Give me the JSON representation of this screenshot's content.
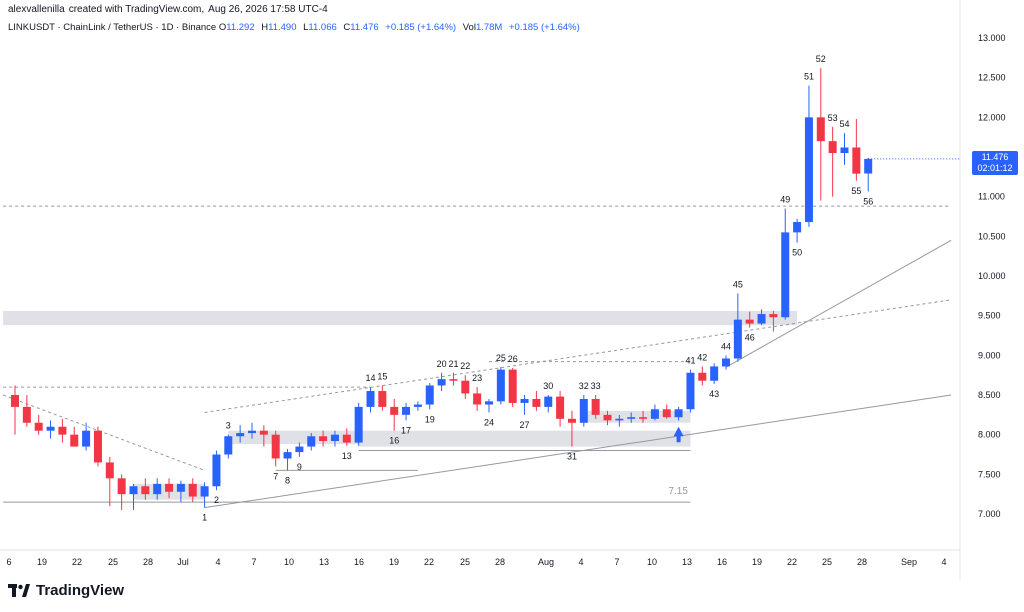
{
  "header": {
    "author": "alexvallenilla",
    "created_with": "created with TradingView.com,",
    "datetime": "Aug 26, 2026 17:58 UTC-4"
  },
  "symbol": {
    "name": "LINKUSDT · ChainLink / TetherUS · 1D · Binance",
    "open_label": "O",
    "open": "11.292",
    "high_label": "H",
    "high": "11.490",
    "low_label": "L",
    "low": "11.066",
    "close_label": "C",
    "close": "11.476",
    "change": "+0.185 (+1.64%)",
    "vol_label": "Vol",
    "vol": "1.78M",
    "vol_change": "+0.185 (+1.64%)"
  },
  "last_price": {
    "price": "11.476",
    "countdown": "02:01:12"
  },
  "footer": {
    "logo_text": "TradingView"
  },
  "colors": {
    "up": "#2962ff",
    "down": "#f23645",
    "zone": "#d1d4dc",
    "line": "#9598a1",
    "axis_text": "#131722",
    "background": "#ffffff"
  },
  "chart_data": {
    "type": "candlestick",
    "ylim": [
      6.8,
      13.15
    ],
    "y_ticks": [
      "13.000",
      "12.500",
      "12.000",
      "11.500",
      "11.000",
      "10.500",
      "10.000",
      "9.500",
      "9.000",
      "8.500",
      "8.000",
      "7.500",
      "7.000"
    ],
    "x_ticks": [
      "6",
      "19",
      "22",
      "25",
      "28",
      "Jul",
      "4",
      "7",
      "10",
      "13",
      "16",
      "19",
      "22",
      "25",
      "28",
      "Aug",
      "4",
      "7",
      "10",
      "13",
      "16",
      "19",
      "22",
      "25",
      "28",
      "Sep",
      "4"
    ],
    "candles": [
      {
        "o": 8.5,
        "h": 8.62,
        "l": 8.0,
        "c": 8.35
      },
      {
        "o": 8.35,
        "h": 8.5,
        "l": 8.1,
        "c": 8.15
      },
      {
        "o": 8.15,
        "h": 8.25,
        "l": 8.0,
        "c": 8.05
      },
      {
        "o": 8.05,
        "h": 8.18,
        "l": 7.95,
        "c": 8.1
      },
      {
        "o": 8.1,
        "h": 8.2,
        "l": 7.9,
        "c": 8.0
      },
      {
        "o": 8.0,
        "h": 8.1,
        "l": 7.85,
        "c": 7.85
      },
      {
        "o": 7.85,
        "h": 8.15,
        "l": 7.8,
        "c": 8.05
      },
      {
        "o": 8.05,
        "h": 8.1,
        "l": 7.6,
        "c": 7.65
      },
      {
        "o": 7.65,
        "h": 7.72,
        "l": 7.1,
        "c": 7.45
      },
      {
        "o": 7.45,
        "h": 7.5,
        "l": 7.05,
        "c": 7.25
      },
      {
        "o": 7.25,
        "h": 7.38,
        "l": 7.05,
        "c": 7.35
      },
      {
        "o": 7.35,
        "h": 7.45,
        "l": 7.18,
        "c": 7.25
      },
      {
        "o": 7.25,
        "h": 7.45,
        "l": 7.18,
        "c": 7.38
      },
      {
        "o": 7.38,
        "h": 7.45,
        "l": 7.2,
        "c": 7.28
      },
      {
        "o": 7.28,
        "h": 7.42,
        "l": 7.15,
        "c": 7.38
      },
      {
        "o": 7.38,
        "h": 7.45,
        "l": 7.15,
        "c": 7.22
      },
      {
        "o": 7.22,
        "h": 7.4,
        "l": 7.08,
        "c": 7.35
      },
      {
        "o": 7.35,
        "h": 7.8,
        "l": 7.3,
        "c": 7.75
      },
      {
        "o": 7.75,
        "h": 8.0,
        "l": 7.7,
        "c": 7.98
      },
      {
        "o": 7.98,
        "h": 8.12,
        "l": 7.9,
        "c": 8.02
      },
      {
        "o": 8.02,
        "h": 8.15,
        "l": 7.95,
        "c": 8.05
      },
      {
        "o": 8.05,
        "h": 8.12,
        "l": 7.85,
        "c": 8.0
      },
      {
        "o": 8.0,
        "h": 8.05,
        "l": 7.6,
        "c": 7.7
      },
      {
        "o": 7.7,
        "h": 7.82,
        "l": 7.55,
        "c": 7.78
      },
      {
        "o": 7.78,
        "h": 7.9,
        "l": 7.72,
        "c": 7.85
      },
      {
        "o": 7.85,
        "h": 8.02,
        "l": 7.8,
        "c": 7.98
      },
      {
        "o": 7.98,
        "h": 8.05,
        "l": 7.85,
        "c": 7.92
      },
      {
        "o": 7.92,
        "h": 8.05,
        "l": 7.85,
        "c": 8.0
      },
      {
        "o": 8.0,
        "h": 8.08,
        "l": 7.86,
        "c": 7.9
      },
      {
        "o": 7.9,
        "h": 8.4,
        "l": 7.86,
        "c": 8.35
      },
      {
        "o": 8.35,
        "h": 8.6,
        "l": 8.28,
        "c": 8.55
      },
      {
        "o": 8.55,
        "h": 8.62,
        "l": 8.3,
        "c": 8.35
      },
      {
        "o": 8.35,
        "h": 8.45,
        "l": 8.05,
        "c": 8.25
      },
      {
        "o": 8.25,
        "h": 8.4,
        "l": 8.18,
        "c": 8.35
      },
      {
        "o": 8.35,
        "h": 8.42,
        "l": 8.3,
        "c": 8.38
      },
      {
        "o": 8.38,
        "h": 8.65,
        "l": 8.32,
        "c": 8.62
      },
      {
        "o": 8.62,
        "h": 8.78,
        "l": 8.55,
        "c": 8.7
      },
      {
        "o": 8.7,
        "h": 8.78,
        "l": 8.62,
        "c": 8.68
      },
      {
        "o": 8.68,
        "h": 8.75,
        "l": 8.45,
        "c": 8.52
      },
      {
        "o": 8.52,
        "h": 8.6,
        "l": 8.3,
        "c": 8.38
      },
      {
        "o": 8.38,
        "h": 8.45,
        "l": 8.28,
        "c": 8.42
      },
      {
        "o": 8.42,
        "h": 8.85,
        "l": 8.38,
        "c": 8.82
      },
      {
        "o": 8.82,
        "h": 8.84,
        "l": 8.35,
        "c": 8.4
      },
      {
        "o": 8.4,
        "h": 8.5,
        "l": 8.25,
        "c": 8.45
      },
      {
        "o": 8.45,
        "h": 8.55,
        "l": 8.3,
        "c": 8.35
      },
      {
        "o": 8.35,
        "h": 8.5,
        "l": 8.28,
        "c": 8.48
      },
      {
        "o": 8.48,
        "h": 8.55,
        "l": 8.1,
        "c": 8.2
      },
      {
        "o": 8.2,
        "h": 8.3,
        "l": 7.85,
        "c": 8.15
      },
      {
        "o": 8.15,
        "h": 8.5,
        "l": 8.1,
        "c": 8.45
      },
      {
        "o": 8.45,
        "h": 8.5,
        "l": 8.2,
        "c": 8.25
      },
      {
        "o": 8.25,
        "h": 8.3,
        "l": 8.12,
        "c": 8.18
      },
      {
        "o": 8.18,
        "h": 8.25,
        "l": 8.1,
        "c": 8.2
      },
      {
        "o": 8.2,
        "h": 8.28,
        "l": 8.15,
        "c": 8.22
      },
      {
        "o": 8.22,
        "h": 8.3,
        "l": 8.15,
        "c": 8.2
      },
      {
        "o": 8.2,
        "h": 8.38,
        "l": 8.18,
        "c": 8.32
      },
      {
        "o": 8.32,
        "h": 8.38,
        "l": 8.2,
        "c": 8.22
      },
      {
        "o": 8.22,
        "h": 8.35,
        "l": 8.18,
        "c": 8.32
      },
      {
        "o": 8.32,
        "h": 8.82,
        "l": 8.28,
        "c": 8.78
      },
      {
        "o": 8.78,
        "h": 8.86,
        "l": 8.62,
        "c": 8.68
      },
      {
        "o": 8.68,
        "h": 8.9,
        "l": 8.64,
        "c": 8.86
      },
      {
        "o": 8.86,
        "h": 9.0,
        "l": 8.82,
        "c": 8.96
      },
      {
        "o": 8.96,
        "h": 9.78,
        "l": 8.92,
        "c": 9.45
      },
      {
        "o": 9.45,
        "h": 9.55,
        "l": 9.35,
        "c": 9.4
      },
      {
        "o": 9.4,
        "h": 9.58,
        "l": 9.38,
        "c": 9.52
      },
      {
        "o": 9.52,
        "h": 9.56,
        "l": 9.3,
        "c": 9.48
      },
      {
        "o": 9.48,
        "h": 10.85,
        "l": 9.45,
        "c": 10.55
      },
      {
        "o": 10.55,
        "h": 10.72,
        "l": 10.42,
        "c": 10.68
      },
      {
        "o": 10.68,
        "h": 12.4,
        "l": 10.62,
        "c": 12.0
      },
      {
        "o": 12.0,
        "h": 12.62,
        "l": 10.95,
        "c": 11.7
      },
      {
        "o": 11.7,
        "h": 11.88,
        "l": 11.0,
        "c": 11.55
      },
      {
        "o": 11.55,
        "h": 11.8,
        "l": 11.4,
        "c": 11.62
      },
      {
        "o": 11.62,
        "h": 11.98,
        "l": 11.2,
        "c": 11.29
      },
      {
        "o": 11.292,
        "h": 11.49,
        "l": 11.066,
        "c": 11.476
      }
    ],
    "wave_labels": [
      {
        "text": "1",
        "i": 16,
        "pos": "below"
      },
      {
        "text": "2",
        "i": 17,
        "pos": "below"
      },
      {
        "text": "3",
        "i": 18,
        "pos": "above"
      },
      {
        "text": "7",
        "i": 22,
        "pos": "below"
      },
      {
        "text": "8",
        "i": 23,
        "pos": "below"
      },
      {
        "text": "9",
        "i": 24,
        "pos": "below"
      },
      {
        "text": "13",
        "i": 28,
        "pos": "below"
      },
      {
        "text": "14",
        "i": 30,
        "pos": "above"
      },
      {
        "text": "15",
        "i": 31,
        "pos": "above"
      },
      {
        "text": "16",
        "i": 32,
        "pos": "below"
      },
      {
        "text": "17",
        "i": 33,
        "pos": "below"
      },
      {
        "text": "19",
        "i": 35,
        "pos": "below"
      },
      {
        "text": "20",
        "i": 36,
        "pos": "above"
      },
      {
        "text": "21",
        "i": 37,
        "pos": "above"
      },
      {
        "text": "22",
        "i": 38,
        "pos": "above"
      },
      {
        "text": "23",
        "i": 39,
        "pos": "above"
      },
      {
        "text": "24",
        "i": 40,
        "pos": "below"
      },
      {
        "text": "25",
        "i": 41,
        "pos": "above"
      },
      {
        "text": "26",
        "i": 42,
        "pos": "above"
      },
      {
        "text": "27",
        "i": 43,
        "pos": "below"
      },
      {
        "text": "30",
        "i": 45,
        "pos": "above"
      },
      {
        "text": "31",
        "i": 47,
        "pos": "below"
      },
      {
        "text": "32",
        "i": 48,
        "pos": "above"
      },
      {
        "text": "33",
        "i": 49,
        "pos": "above"
      },
      {
        "text": "41",
        "i": 57,
        "pos": "above"
      },
      {
        "text": "42",
        "i": 58,
        "pos": "above"
      },
      {
        "text": "43",
        "i": 59,
        "pos": "below"
      },
      {
        "text": "44",
        "i": 60,
        "pos": "above"
      },
      {
        "text": "45",
        "i": 61,
        "pos": "above"
      },
      {
        "text": "46",
        "i": 62,
        "pos": "below"
      },
      {
        "text": "49",
        "i": 65,
        "pos": "above"
      },
      {
        "text": "50",
        "i": 66,
        "pos": "below"
      },
      {
        "text": "51",
        "i": 67,
        "pos": "above"
      },
      {
        "text": "52",
        "i": 68,
        "pos": "above"
      },
      {
        "text": "53",
        "i": 69,
        "pos": "above"
      },
      {
        "text": "54",
        "i": 70,
        "pos": "above"
      },
      {
        "text": "55",
        "i": 71,
        "pos": "below"
      },
      {
        "text": "56",
        "i": 72,
        "pos": "below"
      }
    ],
    "zone_label": "7.15",
    "zones": [
      {
        "from_i": 10,
        "to_i": 16,
        "y1": 7.18,
        "y2": 7.38
      },
      {
        "from_i": 18,
        "to_i": 29,
        "y1": 7.88,
        "y2": 8.05
      },
      {
        "from_i": 29,
        "to_i": 57,
        "y1": 7.85,
        "y2": 8.05
      },
      {
        "from_i": 48,
        "to_i": 57,
        "y1": 8.15,
        "y2": 8.3
      },
      {
        "from_i": -1,
        "to_i": 66,
        "y1": 9.38,
        "y2": 9.56
      }
    ],
    "hlines": [
      {
        "from_i": -1,
        "to_i": 57,
        "y": 7.15,
        "dashed": false
      },
      {
        "from_i": 29,
        "to_i": 57,
        "y": 7.8,
        "dashed": false
      },
      {
        "from_i": 22,
        "to_i": 34,
        "y": 7.55,
        "dashed": false
      },
      {
        "from_i": -1,
        "to_i": 79,
        "y": 10.88,
        "dashed": true
      },
      {
        "from_i": -1,
        "to_i": 30,
        "y": 8.6,
        "dashed": true
      },
      {
        "from_i": 40,
        "to_i": 57,
        "y": 8.92,
        "dashed": true
      }
    ],
    "trendlines": [
      {
        "i1": 16,
        "y1": 7.08,
        "i2": 79,
        "y2": 8.5,
        "dashed": false
      },
      {
        "i1": -1,
        "y1": 8.5,
        "i2": 16,
        "y2": 7.55,
        "dashed": true
      },
      {
        "i1": 16,
        "y1": 8.28,
        "i2": 79,
        "y2": 9.7,
        "dashed": true
      },
      {
        "i1": 60,
        "y1": 8.85,
        "i2": 79,
        "y2": 10.45,
        "dashed": false
      }
    ]
  }
}
